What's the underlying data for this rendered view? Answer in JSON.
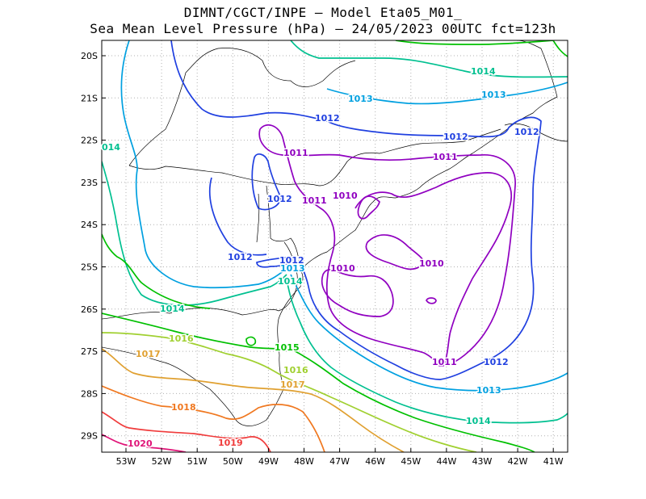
{
  "title": {
    "line1": "DIMNT/CGCT/INPE –  Model Eta05_M01_",
    "line2": "Sea Mean Level Pressure (hPa) – 24/05/2023 00UTC fct=123h"
  },
  "axes": {
    "lon_labels": [
      "53W",
      "52W",
      "51W",
      "50W",
      "49W",
      "48W",
      "47W",
      "46W",
      "45W",
      "44W",
      "43W",
      "42W",
      "41W"
    ],
    "lat_labels": [
      "20S",
      "21S",
      "22S",
      "23S",
      "24S",
      "25S",
      "26S",
      "27S",
      "28S",
      "29S"
    ]
  },
  "colors": {
    "c1010": "#9000c0",
    "c1011": "#9000c0",
    "c1012": "#2040e0",
    "c1013": "#00a0e0",
    "c1014": "#00c090",
    "c1015": "#00c000",
    "c1016": "#a0d030",
    "c1017": "#e0a030",
    "c1018": "#f07820",
    "c1019": "#f03c3c",
    "c1020": "#e01478"
  },
  "contour_labels": [
    {
      "id": "l1014-ne",
      "text": "1014",
      "level": "c1014"
    },
    {
      "id": "l1013-n",
      "text": "1013",
      "level": "c1013"
    },
    {
      "id": "l1013-ne",
      "text": "1013",
      "level": "c1013"
    },
    {
      "id": "l1012-n",
      "text": "1012",
      "level": "c1012"
    },
    {
      "id": "l1012-nc",
      "text": "1012",
      "level": "c1012"
    },
    {
      "id": "l1012-ne",
      "text": "1012",
      "level": "c1012"
    },
    {
      "id": "l1014-w",
      "text": "014",
      "level": "c1014"
    },
    {
      "id": "l1011-a",
      "text": "1011",
      "level": "c1011"
    },
    {
      "id": "l1011-b",
      "text": "1011",
      "level": "c1011"
    },
    {
      "id": "l1011-c",
      "text": "1011",
      "level": "c1011"
    },
    {
      "id": "l1010-a",
      "text": "1010",
      "level": "c1010"
    },
    {
      "id": "l1012-w1",
      "text": "1012",
      "level": "c1012"
    },
    {
      "id": "l1012-w2",
      "text": "1012",
      "level": "c1012"
    },
    {
      "id": "l1012-w3",
      "text": "1012",
      "level": "c1012"
    },
    {
      "id": "l1013-c",
      "text": "1013",
      "level": "c1013"
    },
    {
      "id": "l1014-c",
      "text": "1014",
      "level": "c1014"
    },
    {
      "id": "l1010-b",
      "text": "1010",
      "level": "c1010"
    },
    {
      "id": "l1010-c",
      "text": "1010",
      "level": "c1010"
    },
    {
      "id": "l1014-sw",
      "text": "1014",
      "level": "c1014"
    },
    {
      "id": "l1016-sw",
      "text": "1016",
      "level": "c1016"
    },
    {
      "id": "l1017-sw",
      "text": "1017",
      "level": "c1017"
    },
    {
      "id": "l1015-c",
      "text": "1015",
      "level": "c1015"
    },
    {
      "id": "l1016-c",
      "text": "1016",
      "level": "c1016"
    },
    {
      "id": "l1017-c",
      "text": "1017",
      "level": "c1017"
    },
    {
      "id": "l1018-sw",
      "text": "1018",
      "level": "c1018"
    },
    {
      "id": "l1019-s",
      "text": "1019",
      "level": "c1019"
    },
    {
      "id": "l1020-s",
      "text": "1020",
      "level": "c1020"
    },
    {
      "id": "l1011-se",
      "text": "1011",
      "level": "c1011"
    },
    {
      "id": "l1012-se",
      "text": "1012",
      "level": "c1012"
    },
    {
      "id": "l1013-se",
      "text": "1013",
      "level": "c1013"
    },
    {
      "id": "l1014-se",
      "text": "1014",
      "level": "c1014"
    }
  ]
}
